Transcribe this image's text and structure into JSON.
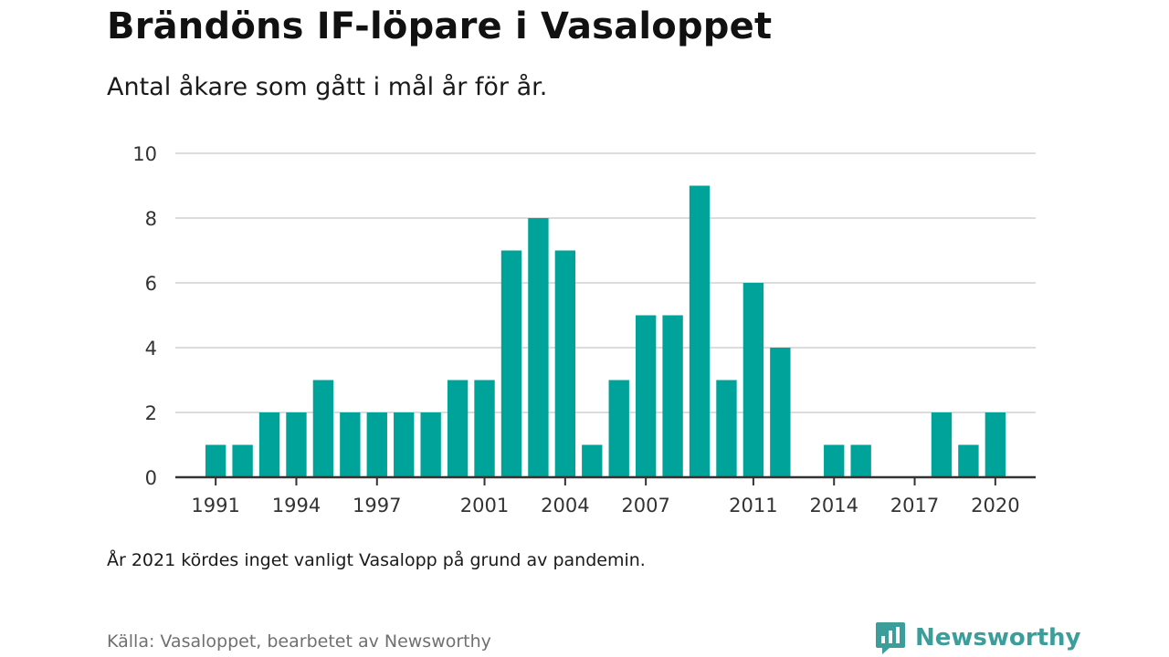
{
  "title": "Brändöns IF-löpare i Vasaloppet",
  "subtitle": "Antal åkare som gått i mål år för år.",
  "note": "År 2021 kördes inget vanligt Vasalopp på grund av pandemin.",
  "source": "Källa: Vasaloppet, bearbetet av Newsworthy",
  "brand": {
    "name": "Newsworthy",
    "icon": "newsworthy-logo-icon",
    "color": "#3c9e9a"
  },
  "colors": {
    "bar": "#00a39a",
    "grid": "#dcdcdc",
    "axis": "#333333",
    "tick_text": "#333333"
  },
  "chart_data": {
    "type": "bar",
    "x": [
      1991,
      1992,
      1993,
      1994,
      1995,
      1996,
      1997,
      1998,
      1999,
      2000,
      2001,
      2002,
      2003,
      2004,
      2005,
      2006,
      2007,
      2008,
      2009,
      2010,
      2011,
      2012,
      2013,
      2014,
      2015,
      2016,
      2017,
      2018,
      2019,
      2020
    ],
    "values": [
      1,
      1,
      2,
      2,
      3,
      2,
      2,
      2,
      2,
      3,
      3,
      7,
      8,
      7,
      1,
      3,
      5,
      5,
      9,
      3,
      6,
      4,
      0,
      1,
      1,
      0,
      0,
      2,
      1,
      2
    ],
    "xticks": [
      "1991",
      "1994",
      "1997",
      "2001",
      "2004",
      "2007",
      "2011",
      "2014",
      "2017",
      "2020"
    ],
    "yticks": [
      "0",
      "2",
      "4",
      "6",
      "8",
      "10"
    ],
    "ylim": [
      0,
      10
    ],
    "xlim": [
      1989.5,
      2021.5
    ],
    "grid": true,
    "xlabel": "",
    "ylabel": ""
  }
}
